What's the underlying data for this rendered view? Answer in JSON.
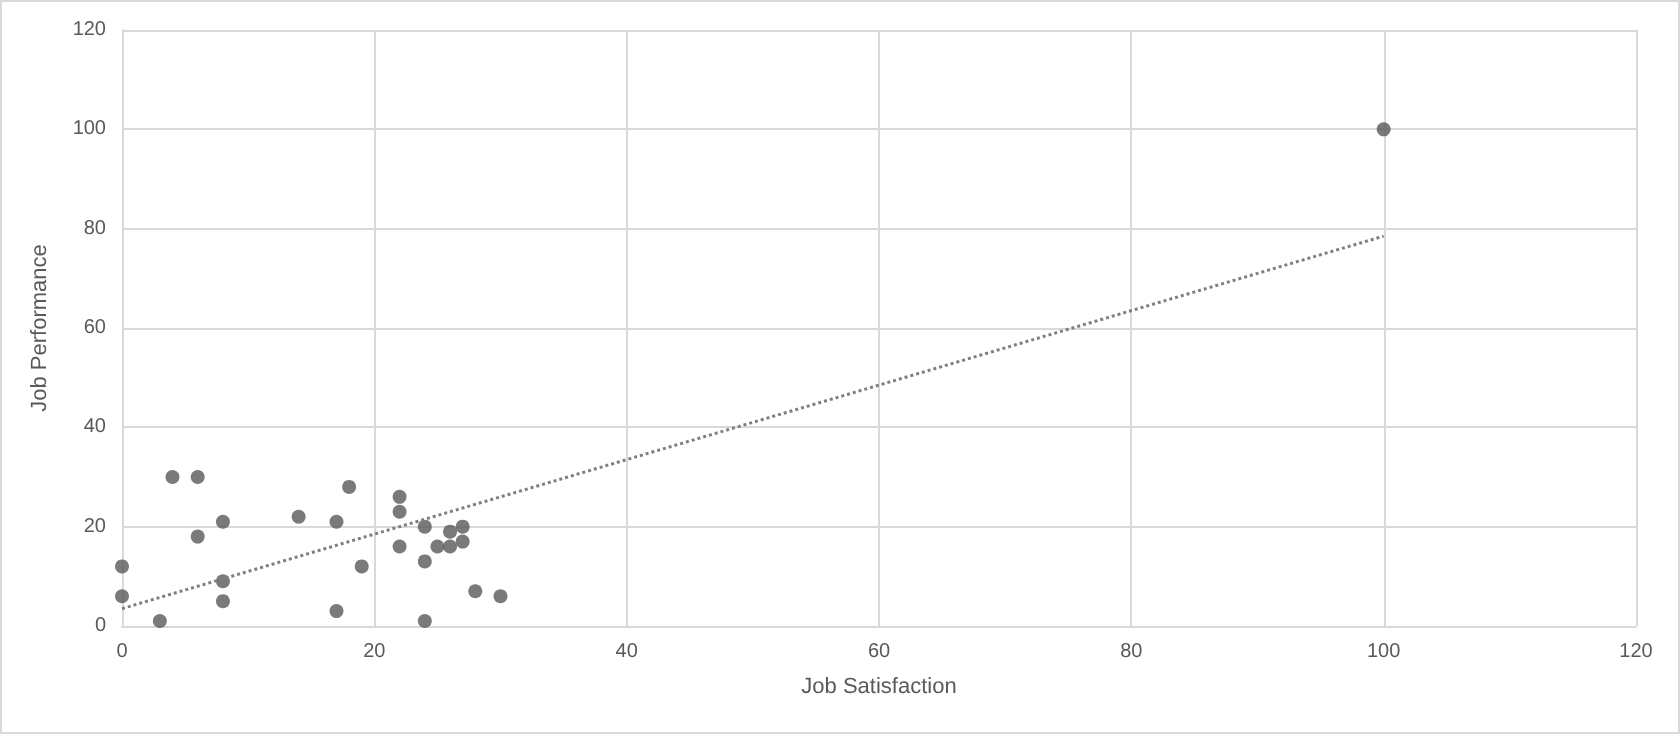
{
  "chart_data": {
    "type": "scatter",
    "xlabel": "Job Satisfaction",
    "ylabel": "Job Performance",
    "series": [
      {
        "color": "#595959",
        "marker": "circle",
        "x": [
          0,
          0,
          3,
          4,
          6,
          6,
          8,
          8,
          8,
          14,
          17,
          17,
          18,
          19,
          22,
          22,
          22,
          24,
          24,
          24,
          25,
          26,
          26,
          27,
          27,
          28,
          30,
          100
        ],
        "values": [
          12,
          6,
          1,
          30,
          30,
          18,
          21,
          9,
          5,
          22,
          21,
          3,
          28,
          12,
          26,
          23,
          16,
          20,
          13,
          1,
          16,
          19,
          16,
          20,
          17,
          7,
          6,
          100
        ]
      },
      {
        "type": "line",
        "color": "#7f7f7f",
        "line_style": "dotted",
        "marker": "none",
        "x": [
          0,
          100
        ],
        "values": [
          3.5,
          78.5
        ]
      }
    ],
    "xlim": [
      0,
      120
    ],
    "xticks": [
      0,
      20,
      40,
      60,
      80,
      100,
      120
    ],
    "ylim": [
      0,
      120
    ],
    "yticks": [
      0,
      20,
      40,
      60,
      80,
      100,
      120
    ],
    "grid": true
  }
}
